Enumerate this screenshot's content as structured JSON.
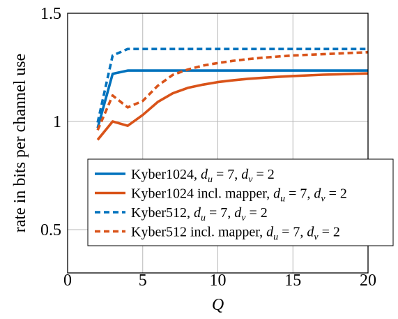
{
  "chart_data": {
    "type": "line",
    "title": "",
    "xlabel": "Q",
    "ylabel": "rate in bits per channel use",
    "xlim": [
      0,
      20
    ],
    "ylim": [
      0.3,
      1.5
    ],
    "xticks": [
      0,
      5,
      10,
      15,
      20
    ],
    "yticks": [
      0.5,
      1,
      1.5
    ],
    "xtick_labels": [
      "0",
      "5",
      "10",
      "15",
      "20"
    ],
    "ytick_labels": [
      "0.5",
      "1",
      "1.5"
    ],
    "grid": true,
    "legend_position": "lower-right",
    "series": [
      {
        "name": "Kyber1024, du = 7, dv = 2",
        "legend_parts": [
          "Kyber1024,",
          "d",
          "u",
          " = 7, ",
          "d",
          "v",
          " = 2"
        ],
        "color": "#0072BD",
        "dash": "solid",
        "x": [
          2,
          3,
          4,
          5,
          6,
          7,
          8,
          9,
          10,
          11,
          12,
          13,
          14,
          15,
          16,
          17,
          18,
          19,
          20
        ],
        "y": [
          0.97,
          1.22,
          1.235,
          1.235,
          1.235,
          1.235,
          1.235,
          1.235,
          1.235,
          1.235,
          1.235,
          1.235,
          1.235,
          1.235,
          1.235,
          1.235,
          1.235,
          1.235,
          1.235
        ]
      },
      {
        "name": "Kyber1024 incl. mapper, du = 7, dv = 2",
        "legend_parts": [
          "Kyber1024 incl. mapper,",
          "d",
          "u",
          " = 7, ",
          "d",
          "v",
          " = 2"
        ],
        "color": "#D95319",
        "dash": "solid",
        "x": [
          2,
          3,
          4,
          5,
          6,
          7,
          8,
          9,
          10,
          11,
          12,
          13,
          14,
          15,
          16,
          17,
          18,
          19,
          20
        ],
        "y": [
          0.915,
          1.0,
          0.98,
          1.03,
          1.09,
          1.13,
          1.155,
          1.17,
          1.182,
          1.19,
          1.197,
          1.202,
          1.206,
          1.21,
          1.213,
          1.216,
          1.218,
          1.22,
          1.222
        ]
      },
      {
        "name": "Kyber512, du = 7, dv = 2",
        "legend_parts": [
          "Kyber512,",
          "d",
          "u",
          " = 7, ",
          "d",
          "v",
          " = 2"
        ],
        "color": "#0072BD",
        "dash": "dashed",
        "x": [
          2,
          3,
          4,
          5,
          6,
          7,
          8,
          9,
          10,
          11,
          12,
          13,
          14,
          15,
          16,
          17,
          18,
          19,
          20
        ],
        "y": [
          0.995,
          1.305,
          1.335,
          1.335,
          1.335,
          1.335,
          1.335,
          1.335,
          1.335,
          1.335,
          1.335,
          1.335,
          1.335,
          1.335,
          1.335,
          1.335,
          1.335,
          1.335,
          1.335
        ]
      },
      {
        "name": "Kyber512 incl. mapper, du = 7, dv = 2",
        "legend_parts": [
          "Kyber512 incl. mapper,",
          "d",
          "u",
          " = 7, ",
          "d",
          "v",
          " = 2"
        ],
        "color": "#D95319",
        "dash": "dashed",
        "x": [
          2,
          3,
          4,
          5,
          6,
          7,
          8,
          9,
          10,
          11,
          12,
          13,
          14,
          15,
          16,
          17,
          18,
          19,
          20
        ],
        "y": [
          0.96,
          1.12,
          1.065,
          1.095,
          1.165,
          1.215,
          1.24,
          1.258,
          1.27,
          1.28,
          1.288,
          1.295,
          1.3,
          1.305,
          1.308,
          1.311,
          1.314,
          1.317,
          1.32
        ]
      }
    ]
  }
}
